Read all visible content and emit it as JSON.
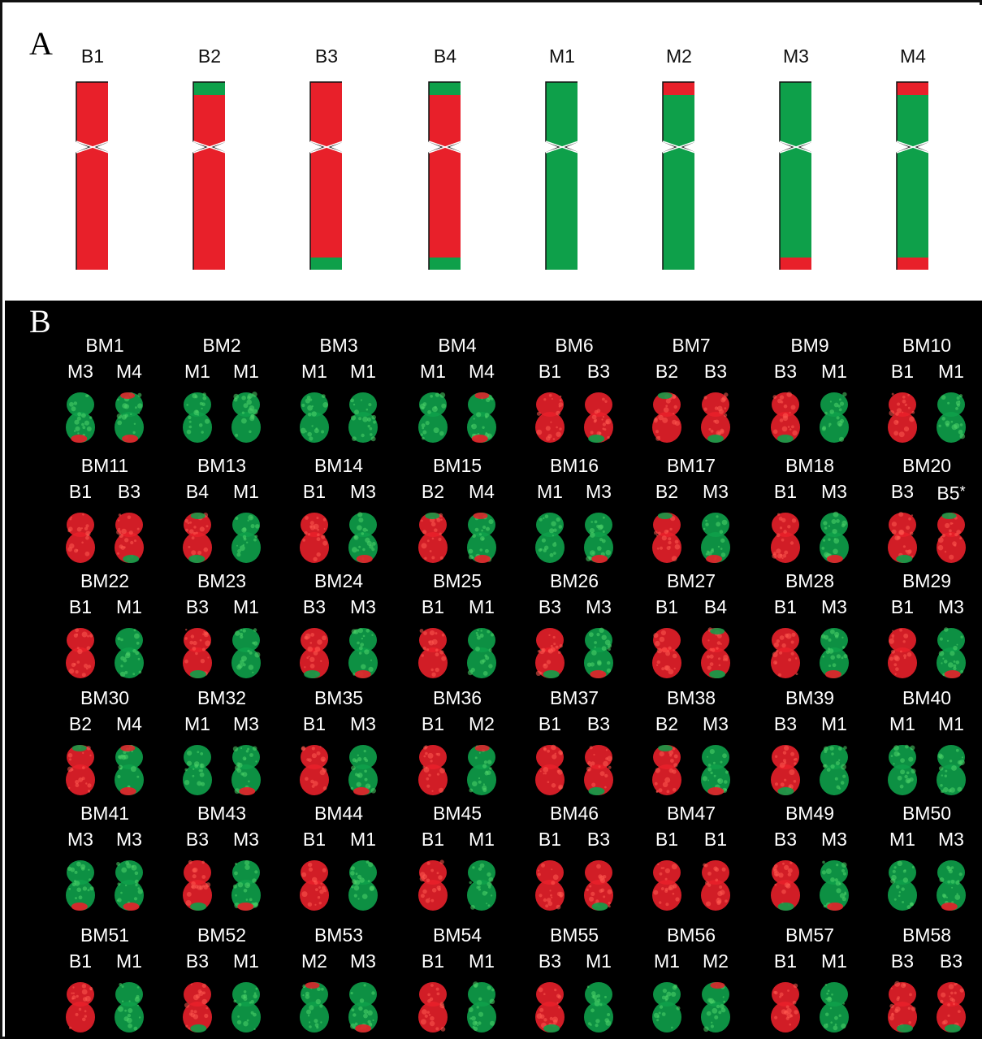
{
  "colors": {
    "red": "#e8202a",
    "green": "#0ea04a",
    "white": "#ffffff",
    "black": "#000000"
  },
  "panel_a": {
    "letter": "A",
    "chromosomes": [
      {
        "label": "B1",
        "base": "red",
        "top_tip": null,
        "bottom_tip": null
      },
      {
        "label": "B2",
        "base": "red",
        "top_tip": "green",
        "bottom_tip": null
      },
      {
        "label": "B3",
        "base": "red",
        "top_tip": null,
        "bottom_tip": "green"
      },
      {
        "label": "B4",
        "base": "red",
        "top_tip": "green",
        "bottom_tip": "green"
      },
      {
        "label": "M1",
        "base": "green",
        "top_tip": null,
        "bottom_tip": null
      },
      {
        "label": "M2",
        "base": "green",
        "top_tip": "red",
        "bottom_tip": null
      },
      {
        "label": "M3",
        "base": "green",
        "top_tip": null,
        "bottom_tip": "red"
      },
      {
        "label": "M4",
        "base": "green",
        "top_tip": "red",
        "bottom_tip": "red"
      }
    ]
  },
  "panel_b": {
    "letter": "B",
    "karyotypes": [
      {
        "name": "BM1",
        "pair": [
          "M3",
          "M4"
        ]
      },
      {
        "name": "BM2",
        "pair": [
          "M1",
          "M1"
        ]
      },
      {
        "name": "BM3",
        "pair": [
          "M1",
          "M1"
        ]
      },
      {
        "name": "BM4",
        "pair": [
          "M1",
          "M4"
        ]
      },
      {
        "name": "BM6",
        "pair": [
          "B1",
          "B3"
        ]
      },
      {
        "name": "BM7",
        "pair": [
          "B2",
          "B3"
        ]
      },
      {
        "name": "BM9",
        "pair": [
          "B3",
          "M1"
        ]
      },
      {
        "name": "BM10",
        "pair": [
          "B1",
          "M1"
        ]
      },
      {
        "name": "BM11",
        "pair": [
          "B1",
          "B3"
        ]
      },
      {
        "name": "BM13",
        "pair": [
          "B4",
          "M1"
        ]
      },
      {
        "name": "BM14",
        "pair": [
          "B1",
          "M3"
        ]
      },
      {
        "name": "BM15",
        "pair": [
          "B2",
          "M4"
        ]
      },
      {
        "name": "BM16",
        "pair": [
          "M1",
          "M3"
        ]
      },
      {
        "name": "BM17",
        "pair": [
          "B2",
          "M3"
        ]
      },
      {
        "name": "BM18",
        "pair": [
          "B1",
          "M3"
        ]
      },
      {
        "name": "BM20",
        "pair": [
          "B3",
          "B5"
        ],
        "mark": "*"
      },
      {
        "name": "BM22",
        "pair": [
          "B1",
          "M1"
        ]
      },
      {
        "name": "BM23",
        "pair": [
          "B3",
          "M1"
        ]
      },
      {
        "name": "BM24",
        "pair": [
          "B3",
          "M3"
        ]
      },
      {
        "name": "BM25",
        "pair": [
          "B1",
          "M1"
        ]
      },
      {
        "name": "BM26",
        "pair": [
          "B3",
          "M3"
        ]
      },
      {
        "name": "BM27",
        "pair": [
          "B1",
          "B4"
        ]
      },
      {
        "name": "BM28",
        "pair": [
          "B1",
          "M3"
        ]
      },
      {
        "name": "BM29",
        "pair": [
          "B1",
          "M3"
        ]
      },
      {
        "name": "BM30",
        "pair": [
          "B2",
          "M4"
        ]
      },
      {
        "name": "BM32",
        "pair": [
          "M1",
          "M3"
        ]
      },
      {
        "name": "BM35",
        "pair": [
          "B1",
          "M3"
        ]
      },
      {
        "name": "BM36",
        "pair": [
          "B1",
          "M2"
        ]
      },
      {
        "name": "BM37",
        "pair": [
          "B1",
          "B3"
        ]
      },
      {
        "name": "BM38",
        "pair": [
          "B2",
          "M3"
        ]
      },
      {
        "name": "BM39",
        "pair": [
          "B3",
          "M1"
        ]
      },
      {
        "name": "BM40",
        "pair": [
          "M1",
          "M1"
        ]
      },
      {
        "name": "BM41",
        "pair": [
          "M3",
          "M3"
        ]
      },
      {
        "name": "BM43",
        "pair": [
          "B3",
          "M3"
        ]
      },
      {
        "name": "BM44",
        "pair": [
          "B1",
          "M1"
        ]
      },
      {
        "name": "BM45",
        "pair": [
          "B1",
          "M1"
        ]
      },
      {
        "name": "BM46",
        "pair": [
          "B1",
          "B3"
        ]
      },
      {
        "name": "BM47",
        "pair": [
          "B1",
          "B1"
        ]
      },
      {
        "name": "BM49",
        "pair": [
          "B3",
          "M3"
        ]
      },
      {
        "name": "BM50",
        "pair": [
          "M1",
          "M3"
        ]
      },
      {
        "name": "BM51",
        "pair": [
          "B1",
          "M1"
        ]
      },
      {
        "name": "BM52",
        "pair": [
          "B3",
          "M1"
        ]
      },
      {
        "name": "BM53",
        "pair": [
          "M2",
          "M3"
        ]
      },
      {
        "name": "BM54",
        "pair": [
          "B1",
          "M1"
        ]
      },
      {
        "name": "BM55",
        "pair": [
          "B3",
          "M1"
        ]
      },
      {
        "name": "BM56",
        "pair": [
          "M1",
          "M2"
        ]
      },
      {
        "name": "BM57",
        "pair": [
          "B1",
          "M1"
        ]
      },
      {
        "name": "BM58",
        "pair": [
          "B3",
          "B3"
        ]
      }
    ]
  }
}
